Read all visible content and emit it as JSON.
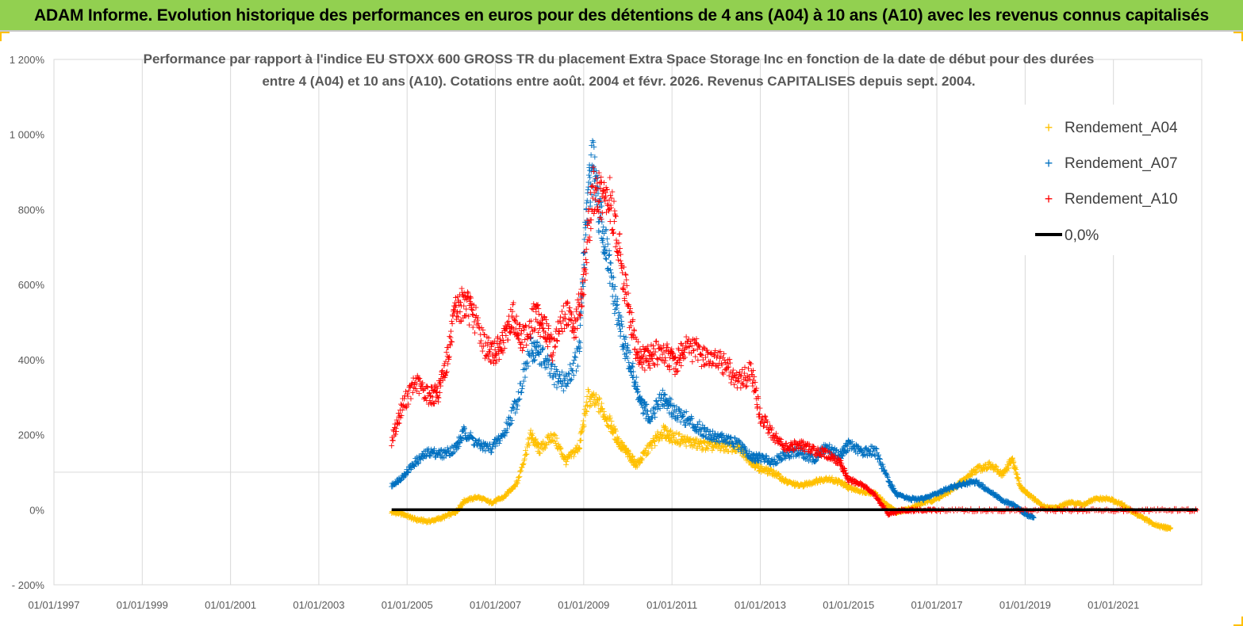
{
  "banner": {
    "title": "ADAM Informe. Evolution historique des performances en euros pour des détentions de 4 ans (A04) à 10 ans (A10) avec les revenus connus capitalisés"
  },
  "colors": {
    "banner_bg": "#92d050",
    "A04": "#ffc000",
    "A07": "#0070c0",
    "A10": "#ff0000",
    "zero_line": "#000000"
  },
  "chart_data": {
    "type": "scatter",
    "title_line1": "Performance par rapport à l'indice EU STOXX 600 GROSS TR  du placement Extra Space Storage Inc en fonction de la date de début pour des durées",
    "title_line2": "entre 4 (A04) et 10 ans (A10). Cotations entre août. 2004 et févr. 2026. Revenus CAPITALISES depuis sept. 2004.",
    "y_axis": {
      "min": -200,
      "max": 1200,
      "unit": "%",
      "ticks": [
        {
          "value": -200,
          "label": "- 200%"
        },
        {
          "value": 0,
          "label": "0%"
        },
        {
          "value": 200,
          "label": "200%"
        },
        {
          "value": 400,
          "label": "400%"
        },
        {
          "value": 600,
          "label": "600%"
        },
        {
          "value": 800,
          "label": "800%"
        },
        {
          "value": 1000,
          "label": "1 000%"
        },
        {
          "value": 1200,
          "label": "1 200%"
        }
      ]
    },
    "x_axis": {
      "min": 1997.0,
      "max": 2023.0,
      "ticks": [
        {
          "value": 1997,
          "label": "01/01/1997"
        },
        {
          "value": 1999,
          "label": "01/01/1999"
        },
        {
          "value": 2001,
          "label": "01/01/2001"
        },
        {
          "value": 2003,
          "label": "01/01/2003"
        },
        {
          "value": 2005,
          "label": "01/01/2005"
        },
        {
          "value": 2007,
          "label": "01/01/2007"
        },
        {
          "value": 2009,
          "label": "01/01/2009"
        },
        {
          "value": 2011,
          "label": "01/01/2011"
        },
        {
          "value": 2013,
          "label": "01/01/2013"
        },
        {
          "value": 2015,
          "label": "01/01/2015"
        },
        {
          "value": 2017,
          "label": "01/01/2017"
        },
        {
          "value": 2019,
          "label": "01/01/2019"
        },
        {
          "value": 2021,
          "label": "01/01/2021"
        }
      ]
    },
    "gridlines": "vertical",
    "legend_position": "top-right",
    "series": [
      {
        "name": "Rendement_A04",
        "marker": "+",
        "points": [
          [
            2004.65,
            -5
          ],
          [
            2004.9,
            -10
          ],
          [
            2005.2,
            -25
          ],
          [
            2005.5,
            -30
          ],
          [
            2005.8,
            -20
          ],
          [
            2006.1,
            -5
          ],
          [
            2006.3,
            25
          ],
          [
            2006.6,
            35
          ],
          [
            2006.9,
            20
          ],
          [
            2007.2,
            35
          ],
          [
            2007.5,
            75
          ],
          [
            2007.8,
            200
          ],
          [
            2008.0,
            160
          ],
          [
            2008.3,
            200
          ],
          [
            2008.6,
            130
          ],
          [
            2008.9,
            170
          ],
          [
            2009.1,
            300
          ],
          [
            2009.35,
            280
          ],
          [
            2009.6,
            230
          ],
          [
            2009.8,
            180
          ],
          [
            2010.0,
            150
          ],
          [
            2010.2,
            120
          ],
          [
            2010.5,
            170
          ],
          [
            2010.8,
            210
          ],
          [
            2011.0,
            195
          ],
          [
            2011.3,
            185
          ],
          [
            2011.6,
            175
          ],
          [
            2011.9,
            170
          ],
          [
            2012.2,
            170
          ],
          [
            2012.5,
            165
          ],
          [
            2012.8,
            130
          ],
          [
            2013.0,
            110
          ],
          [
            2013.3,
            100
          ],
          [
            2013.6,
            75
          ],
          [
            2013.9,
            65
          ],
          [
            2014.2,
            75
          ],
          [
            2014.5,
            85
          ],
          [
            2014.8,
            75
          ],
          [
            2015.0,
            60
          ],
          [
            2015.3,
            50
          ],
          [
            2015.6,
            45
          ],
          [
            2015.9,
            10
          ],
          [
            2016.1,
            -5
          ],
          [
            2016.4,
            5
          ],
          [
            2016.7,
            20
          ],
          [
            2017.0,
            30
          ],
          [
            2017.3,
            50
          ],
          [
            2017.6,
            80
          ],
          [
            2017.9,
            110
          ],
          [
            2018.2,
            120
          ],
          [
            2018.5,
            95
          ],
          [
            2018.7,
            135
          ],
          [
            2018.9,
            60
          ],
          [
            2019.1,
            40
          ],
          [
            2019.4,
            10
          ],
          [
            2019.7,
            5
          ],
          [
            2020.0,
            20
          ],
          [
            2020.3,
            15
          ],
          [
            2020.6,
            30
          ],
          [
            2020.9,
            30
          ],
          [
            2021.2,
            15
          ],
          [
            2021.5,
            -10
          ],
          [
            2021.8,
            -30
          ],
          [
            2022.1,
            -45
          ],
          [
            2022.3,
            -48
          ]
        ]
      },
      {
        "name": "Rendement_A07",
        "marker": "+",
        "points": [
          [
            2004.65,
            65
          ],
          [
            2004.9,
            90
          ],
          [
            2005.2,
            130
          ],
          [
            2005.5,
            155
          ],
          [
            2005.8,
            150
          ],
          [
            2006.1,
            165
          ],
          [
            2006.3,
            210
          ],
          [
            2006.6,
            175
          ],
          [
            2006.9,
            165
          ],
          [
            2007.2,
            205
          ],
          [
            2007.5,
            295
          ],
          [
            2007.8,
            430
          ],
          [
            2008.0,
            420
          ],
          [
            2008.3,
            360
          ],
          [
            2008.6,
            340
          ],
          [
            2008.9,
            420
          ],
          [
            2009.05,
            780
          ],
          [
            2009.2,
            930
          ],
          [
            2009.35,
            790
          ],
          [
            2009.5,
            700
          ],
          [
            2009.7,
            560
          ],
          [
            2009.9,
            450
          ],
          [
            2010.1,
            370
          ],
          [
            2010.3,
            280
          ],
          [
            2010.5,
            250
          ],
          [
            2010.8,
            300
          ],
          [
            2011.0,
            270
          ],
          [
            2011.3,
            245
          ],
          [
            2011.6,
            220
          ],
          [
            2011.9,
            200
          ],
          [
            2012.2,
            190
          ],
          [
            2012.5,
            175
          ],
          [
            2012.8,
            140
          ],
          [
            2013.0,
            140
          ],
          [
            2013.3,
            130
          ],
          [
            2013.6,
            150
          ],
          [
            2013.9,
            155
          ],
          [
            2014.2,
            135
          ],
          [
            2014.5,
            170
          ],
          [
            2014.8,
            145
          ],
          [
            2015.0,
            175
          ],
          [
            2015.3,
            155
          ],
          [
            2015.6,
            160
          ],
          [
            2015.9,
            80
          ],
          [
            2016.1,
            40
          ],
          [
            2016.4,
            30
          ],
          [
            2016.7,
            30
          ],
          [
            2017.0,
            45
          ],
          [
            2017.3,
            60
          ],
          [
            2017.6,
            70
          ],
          [
            2017.9,
            75
          ],
          [
            2018.2,
            50
          ],
          [
            2018.5,
            25
          ],
          [
            2018.8,
            10
          ],
          [
            2019.0,
            -10
          ],
          [
            2019.2,
            -20
          ]
        ]
      },
      {
        "name": "Rendement_A10",
        "marker": "+",
        "points": [
          [
            2004.65,
            185
          ],
          [
            2004.9,
            280
          ],
          [
            2005.2,
            340
          ],
          [
            2005.5,
            305
          ],
          [
            2005.7,
            310
          ],
          [
            2005.9,
            400
          ],
          [
            2006.1,
            530
          ],
          [
            2006.3,
            555
          ],
          [
            2006.5,
            520
          ],
          [
            2006.8,
            430
          ],
          [
            2007.0,
            420
          ],
          [
            2007.2,
            450
          ],
          [
            2007.4,
            520
          ],
          [
            2007.6,
            450
          ],
          [
            2007.9,
            520
          ],
          [
            2008.1,
            490
          ],
          [
            2008.3,
            430
          ],
          [
            2008.6,
            530
          ],
          [
            2008.8,
            480
          ],
          [
            2009.0,
            610
          ],
          [
            2009.2,
            850
          ],
          [
            2009.4,
            830
          ],
          [
            2009.6,
            820
          ],
          [
            2009.8,
            700
          ],
          [
            2010.0,
            550
          ],
          [
            2010.2,
            420
          ],
          [
            2010.4,
            400
          ],
          [
            2010.6,
            420
          ],
          [
            2010.9,
            410
          ],
          [
            2011.1,
            390
          ],
          [
            2011.3,
            440
          ],
          [
            2011.6,
            420
          ],
          [
            2011.9,
            400
          ],
          [
            2012.2,
            390
          ],
          [
            2012.5,
            340
          ],
          [
            2012.8,
            370
          ],
          [
            2013.0,
            250
          ],
          [
            2013.3,
            200
          ],
          [
            2013.6,
            165
          ],
          [
            2013.9,
            175
          ],
          [
            2014.2,
            160
          ],
          [
            2014.5,
            150
          ],
          [
            2014.8,
            130
          ],
          [
            2015.0,
            80
          ],
          [
            2015.3,
            70
          ],
          [
            2015.6,
            40
          ],
          [
            2015.9,
            -10
          ],
          [
            2016.2,
            0
          ],
          [
            2016.5,
            0
          ],
          [
            2017.0,
            0
          ],
          [
            2018.0,
            0
          ],
          [
            2019.0,
            0
          ],
          [
            2020.0,
            0
          ],
          [
            2021.0,
            0
          ],
          [
            2022.0,
            0
          ],
          [
            2022.9,
            0
          ]
        ]
      },
      {
        "name": "0,0%",
        "marker": "line",
        "points": [
          [
            2004.65,
            0
          ],
          [
            2022.9,
            0
          ]
        ]
      }
    ]
  }
}
